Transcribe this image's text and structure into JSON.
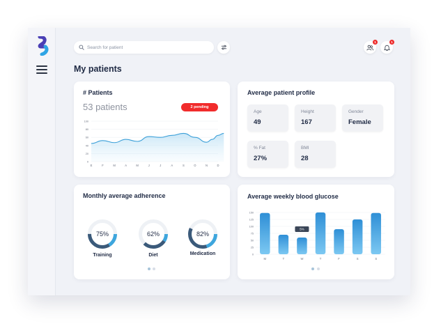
{
  "search": {
    "placeholder": "Search for patient"
  },
  "header": {
    "title": "My patients"
  },
  "notifications": {
    "contacts_count": "1",
    "bell_count": "1"
  },
  "patients_card": {
    "title": "# Patients",
    "count": "53 patients",
    "pending": "2 pending",
    "chart_data": {
      "type": "area",
      "categories": [
        "E",
        "F",
        "M",
        "A",
        "M",
        "J",
        "J",
        "A",
        "S",
        "O",
        "N",
        "D"
      ],
      "y_ticks": [
        "100",
        "80",
        "60",
        "40",
        "20",
        "0"
      ],
      "ylim": [
        0,
        100
      ],
      "values": [
        45,
        52,
        47,
        55,
        50,
        62,
        60,
        65,
        70,
        60,
        48,
        55,
        65,
        70
      ],
      "x": [
        0,
        1,
        2,
        3,
        4,
        5,
        6,
        7,
        8,
        9,
        10,
        10.5,
        11,
        11.5
      ]
    }
  },
  "profile_card": {
    "title": "Average patient profile",
    "stats": [
      {
        "label": "Age",
        "value": "49"
      },
      {
        "label": "Height",
        "value": "167"
      },
      {
        "label": "Gender",
        "value": "Female"
      },
      {
        "label": "% Fat",
        "value": "27%"
      },
      {
        "label": "BMI",
        "value": "28"
      }
    ]
  },
  "adherence_card": {
    "title": "Monthly average adherence",
    "items": [
      {
        "label": "Training",
        "percent": 75,
        "percent_text": "75%"
      },
      {
        "label": "Diet",
        "percent": 62,
        "percent_text": "62%"
      },
      {
        "label": "Medication",
        "percent": 82,
        "percent_text": "82%"
      }
    ]
  },
  "glucose_card": {
    "title": "Average weekly blood glucose",
    "tooltip": "5%",
    "chart_data": {
      "type": "bar",
      "categories": [
        "M",
        "T",
        "W",
        "T",
        "F",
        "S",
        "S"
      ],
      "y_ticks": [
        "150",
        "125",
        "100",
        "75",
        "50",
        "25",
        "0"
      ],
      "ylim": [
        0,
        150
      ],
      "values": [
        148,
        70,
        60,
        150,
        90,
        125,
        148
      ]
    }
  },
  "colors": {
    "accent": "#3a9fd8",
    "badge": "#f12c2c",
    "donut_dark": "#3b5a7a",
    "donut_light": "#3ea6dd"
  }
}
